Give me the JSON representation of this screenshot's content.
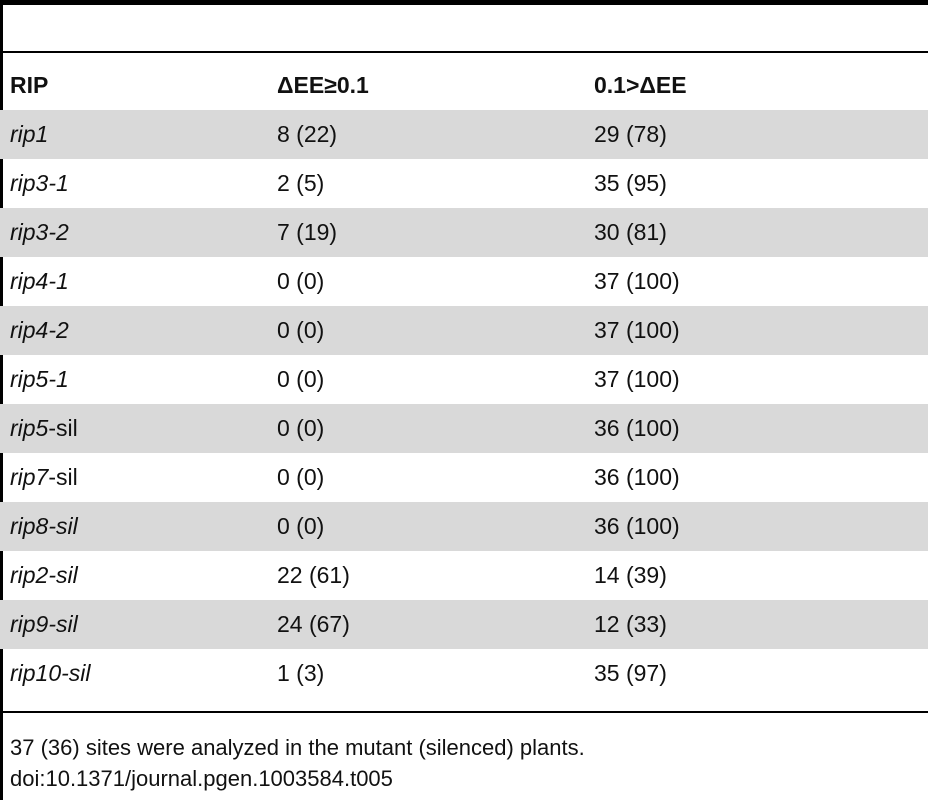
{
  "table": {
    "headers": [
      "RIP",
      "ΔEE≥0.1",
      "0.1>ΔEE"
    ],
    "rows": [
      {
        "rip": "rip1",
        "suffix": "",
        "ge": "8 (22)",
        "lt": "29 (78)"
      },
      {
        "rip": "rip3-1",
        "suffix": "",
        "ge": "2 (5)",
        "lt": "35 (95)"
      },
      {
        "rip": "rip3-2",
        "suffix": "",
        "ge": "7 (19)",
        "lt": "30 (81)"
      },
      {
        "rip": "rip4-1",
        "suffix": "",
        "ge": "0 (0)",
        "lt": "37 (100)"
      },
      {
        "rip": "rip4-2",
        "suffix": "",
        "ge": "0 (0)",
        "lt": "37 (100)"
      },
      {
        "rip": "rip5-1",
        "suffix": "",
        "ge": "0 (0)",
        "lt": "37 (100)"
      },
      {
        "rip": "rip5",
        "suffix": "-sil",
        "ge": "0 (0)",
        "lt": "36 (100)"
      },
      {
        "rip": "rip7",
        "suffix": "-sil",
        "ge": "0 (0)",
        "lt": "36 (100)"
      },
      {
        "rip": "rip8-sil",
        "suffix": "",
        "ge": "0 (0)",
        "lt": "36 (100)"
      },
      {
        "rip": "rip2-sil",
        "suffix": "",
        "ge": "22 (61)",
        "lt": "14 (39)"
      },
      {
        "rip": "rip9-sil",
        "suffix": "",
        "ge": "24 (67)",
        "lt": "12 (33)"
      },
      {
        "rip": "rip10-sil",
        "suffix": "",
        "ge": "1 (3)",
        "lt": "35 (97)"
      }
    ]
  },
  "footnote": "37 (36) sites were analyzed in the mutant (silenced) plants.",
  "doi": "doi:10.1371/journal.pgen.1003584.t005"
}
